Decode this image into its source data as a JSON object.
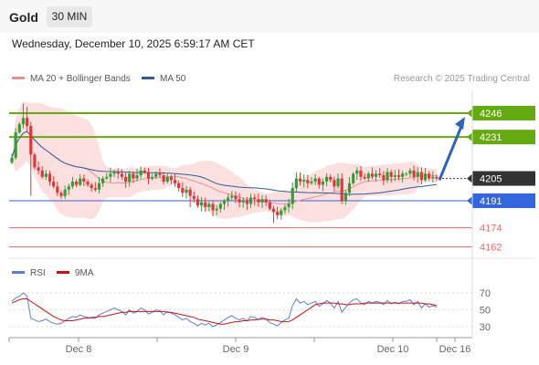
{
  "header": {
    "title": "Gold",
    "timeframe": "30 MIN",
    "datetime": "Wednesday, December 10, 2025 6:59:17 AM CET"
  },
  "legend": {
    "ma20": "MA 20 + Bollinger Bands",
    "ma50": "MA 50",
    "credit": "Research © 2025 Trading Central"
  },
  "rsi_legend": {
    "rsi": "RSI",
    "ma": "9MA"
  },
  "colors": {
    "bull": "#3a9a3a",
    "bear": "#d93b3b",
    "target": "#66aa11",
    "support": "#3366dd",
    "weak_support": "#ee6666",
    "current": "#333333",
    "arrow": "#2e64b8",
    "bollinger": "#fbdada",
    "ma20": "#e98f8f",
    "ma50": "#2c5d9a",
    "rsi": "#5b7fd9",
    "rsi_ma": "#cc1111"
  },
  "chart_data": [
    {
      "type": "candlestick",
      "title": "Gold 30 MIN",
      "x_ticks": [
        "Dec 8",
        "Dec 9",
        "Dec 10",
        "Dec 16"
      ],
      "levels": [
        {
          "value": 4246,
          "label": "4246",
          "role": "target"
        },
        {
          "value": 4231,
          "label": "4231",
          "role": "target"
        },
        {
          "value": 4205,
          "label": "4205",
          "role": "current"
        },
        {
          "value": 4191,
          "label": "4191",
          "role": "support"
        },
        {
          "value": 4174,
          "label": "4174",
          "role": "weak-support"
        },
        {
          "value": 4162,
          "label": "4162",
          "role": "weak-support"
        }
      ],
      "close": [
        4218,
        4234,
        4239,
        4243,
        4238,
        4220,
        4212,
        4210,
        4206,
        4208,
        4203,
        4200,
        4196,
        4194,
        4198,
        4200,
        4203,
        4201,
        4205,
        4203,
        4201,
        4199,
        4198,
        4202,
        4205,
        4206,
        4208,
        4209,
        4208,
        4206,
        4203,
        4208,
        4205,
        4207,
        4210,
        4209,
        4205,
        4206,
        4208,
        4207,
        4203,
        4206,
        4204,
        4202,
        4199,
        4196,
        4198,
        4194,
        4192,
        4188,
        4190,
        4187,
        4189,
        4185,
        4186,
        4189,
        4191,
        4193,
        4194,
        4192,
        4190,
        4191,
        4189,
        4193,
        4192,
        4190,
        4192,
        4190,
        4186,
        4184,
        4182,
        4185,
        4187,
        4189,
        4199,
        4205,
        4203,
        4204,
        4202,
        4203,
        4205,
        4201,
        4203,
        4206,
        4204,
        4200,
        4205,
        4191,
        4196,
        4202,
        4208,
        4210,
        4206,
        4205,
        4208,
        4206,
        4208,
        4207,
        4204,
        4209,
        4206,
        4207,
        4206,
        4208,
        4208,
        4210,
        4206,
        4209,
        4204,
        4208,
        4205,
        4206,
        4205
      ],
      "high": 4252,
      "low": 4177,
      "ma20_end": 4199,
      "ma50_end": 4202,
      "arrow": {
        "from": 4204,
        "to": 4246
      }
    },
    {
      "type": "line",
      "title": "RSI",
      "ylim": [
        20,
        80
      ],
      "y_ticks": [
        70,
        50,
        30
      ],
      "series": [
        {
          "name": "RSI",
          "values": [
            60,
            64,
            66,
            70,
            66,
            40,
            38,
            36,
            37,
            39,
            36,
            34,
            33,
            34,
            37,
            40,
            42,
            41,
            44,
            42,
            41,
            40,
            40,
            44,
            46,
            48,
            50,
            52,
            50,
            48,
            44,
            50,
            46,
            48,
            52,
            50,
            45,
            47,
            50,
            49,
            44,
            48,
            46,
            44,
            41,
            38,
            40,
            36,
            34,
            31,
            34,
            32,
            34,
            30,
            32,
            35,
            38,
            41,
            43,
            40,
            38,
            40,
            37,
            42,
            41,
            38,
            41,
            39,
            35,
            33,
            31,
            35,
            38,
            40,
            55,
            63,
            58,
            60,
            56,
            58,
            60,
            54,
            57,
            61,
            58,
            52,
            60,
            47,
            53,
            58,
            62,
            63,
            58,
            56,
            60,
            58,
            60,
            59,
            56,
            61,
            57,
            59,
            57,
            60,
            60,
            62,
            56,
            60,
            52,
            57,
            53,
            55,
            53
          ]
        },
        {
          "name": "9MA",
          "values": [
            58,
            60,
            62,
            63,
            63,
            60,
            57,
            54,
            51,
            48,
            45,
            42,
            40,
            38,
            37,
            37,
            37,
            38,
            39,
            40,
            40,
            41,
            41,
            42,
            42,
            43,
            44,
            45,
            46,
            47,
            47,
            48,
            48,
            48,
            48,
            48,
            48,
            48,
            48,
            48,
            48,
            47,
            47,
            46,
            45,
            44,
            43,
            42,
            41,
            39,
            38,
            37,
            36,
            35,
            34,
            33,
            33,
            34,
            35,
            36,
            36,
            37,
            37,
            38,
            38,
            39,
            39,
            39,
            38,
            38,
            37,
            36,
            36,
            36,
            38,
            41,
            44,
            47,
            50,
            53,
            56,
            57,
            58,
            58,
            58,
            58,
            57,
            57,
            56,
            56,
            57,
            57,
            57,
            58,
            58,
            58,
            58,
            58,
            58,
            58,
            58,
            58,
            58,
            58,
            58,
            58,
            58,
            58,
            58,
            57,
            57,
            56,
            55
          ]
        }
      ]
    }
  ]
}
